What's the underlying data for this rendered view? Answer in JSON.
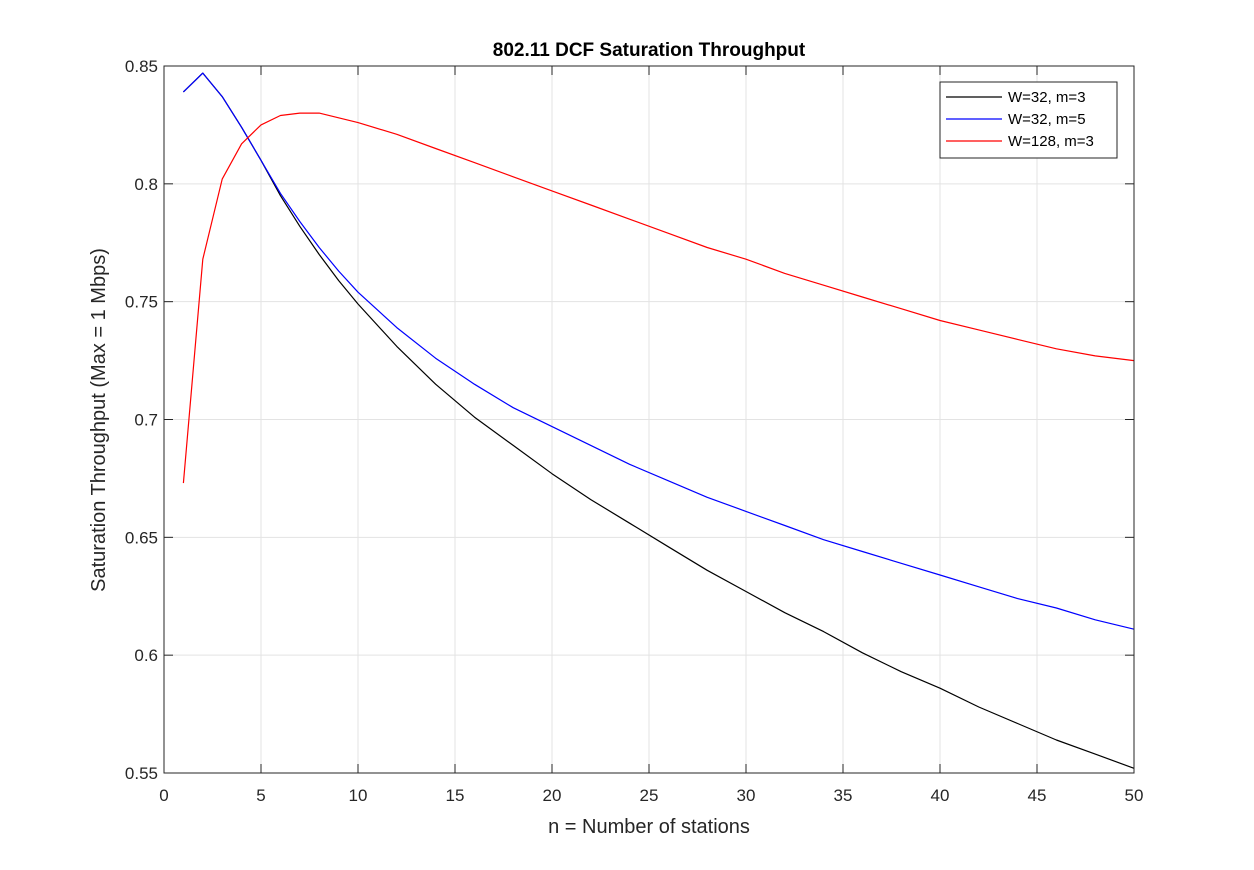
{
  "chart_data": {
    "type": "line",
    "title": "802.11 DCF Saturation Throughput",
    "xlabel": "n = Number of stations",
    "ylabel": "Saturation Throughput (Max = 1 Mbps)",
    "xlim": [
      0,
      50
    ],
    "ylim": [
      0.55,
      0.85
    ],
    "xticks": [
      0,
      5,
      10,
      15,
      20,
      25,
      30,
      35,
      40,
      45,
      50
    ],
    "yticks": [
      0.55,
      0.6,
      0.65,
      0.7,
      0.75,
      0.8,
      0.85
    ],
    "xtick_labels": [
      "0",
      "5",
      "10",
      "15",
      "20",
      "25",
      "30",
      "35",
      "40",
      "45",
      "50"
    ],
    "ytick_labels": [
      "0.55",
      "0.6",
      "0.65",
      "0.7",
      "0.75",
      "0.8",
      "0.85"
    ],
    "grid": true,
    "legend_position": "top-right",
    "series": [
      {
        "name": "W=32, m=3",
        "color": "#000000",
        "x": [
          1,
          2,
          3,
          4,
          5,
          6,
          7,
          8,
          9,
          10,
          12,
          14,
          16,
          18,
          20,
          22,
          24,
          26,
          28,
          30,
          32,
          34,
          36,
          38,
          40,
          42,
          44,
          46,
          48,
          50
        ],
        "y": [
          0.839,
          0.847,
          0.837,
          0.824,
          0.81,
          0.795,
          0.782,
          0.77,
          0.759,
          0.749,
          0.731,
          0.715,
          0.701,
          0.689,
          0.677,
          0.666,
          0.656,
          0.646,
          0.636,
          0.627,
          0.618,
          0.61,
          0.601,
          0.593,
          0.586,
          0.578,
          0.571,
          0.564,
          0.558,
          0.552
        ]
      },
      {
        "name": "W=32, m=5",
        "color": "#0000ff",
        "x": [
          1,
          2,
          3,
          4,
          5,
          6,
          7,
          8,
          9,
          10,
          12,
          14,
          16,
          18,
          20,
          22,
          24,
          26,
          28,
          30,
          32,
          34,
          36,
          38,
          40,
          42,
          44,
          46,
          48,
          50
        ],
        "y": [
          0.839,
          0.847,
          0.837,
          0.824,
          0.81,
          0.796,
          0.784,
          0.773,
          0.763,
          0.754,
          0.739,
          0.726,
          0.715,
          0.705,
          0.697,
          0.689,
          0.681,
          0.674,
          0.667,
          0.661,
          0.655,
          0.649,
          0.644,
          0.639,
          0.634,
          0.629,
          0.624,
          0.62,
          0.615,
          0.611
        ]
      },
      {
        "name": "W=128, m=3",
        "color": "#ff0000",
        "x": [
          1,
          2,
          3,
          4,
          5,
          6,
          7,
          8,
          9,
          10,
          12,
          14,
          16,
          18,
          20,
          22,
          24,
          26,
          28,
          30,
          32,
          34,
          36,
          38,
          40,
          42,
          44,
          46,
          48,
          50
        ],
        "y": [
          0.673,
          0.768,
          0.802,
          0.817,
          0.825,
          0.829,
          0.83,
          0.83,
          0.828,
          0.826,
          0.821,
          0.815,
          0.809,
          0.803,
          0.797,
          0.791,
          0.785,
          0.779,
          0.773,
          0.768,
          0.762,
          0.757,
          0.752,
          0.747,
          0.742,
          0.738,
          0.734,
          0.73,
          0.727,
          0.725
        ]
      }
    ]
  }
}
